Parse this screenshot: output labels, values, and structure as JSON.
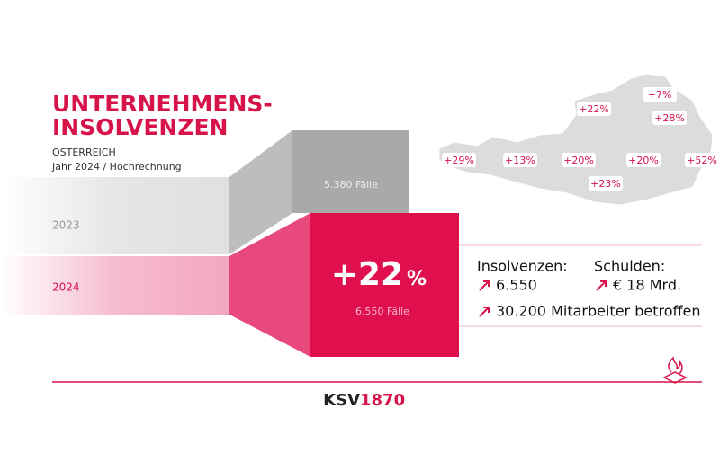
{
  "header": {
    "title_line1": "UNTERNEHMENS-",
    "title_line2": "INSOLVENZEN",
    "country": "ÖSTERREICH",
    "subtitle": "Jahr 2024 / Hochrechnung"
  },
  "years": {
    "previous": {
      "label": "2023",
      "cases": "5.380 Fälle"
    },
    "current": {
      "label": "2024",
      "cases": "6.550 Fälle",
      "change": "+22",
      "change_unit": "%"
    }
  },
  "facts": {
    "insolvencies": {
      "label": "Insolvenzen:",
      "value": "6.550"
    },
    "debts": {
      "label": "Schulden:",
      "value": "€ 18 Mrd."
    },
    "employees": "30.200 Mitarbeiter betroffen"
  },
  "map_labels": [
    "+7%",
    "+22%",
    "+28%",
    "+29%",
    "+13%",
    "+20%",
    "+20%",
    "+52%",
    "+23%"
  ],
  "footer": {
    "brand": "KSV",
    "brand_year": "1870"
  }
}
